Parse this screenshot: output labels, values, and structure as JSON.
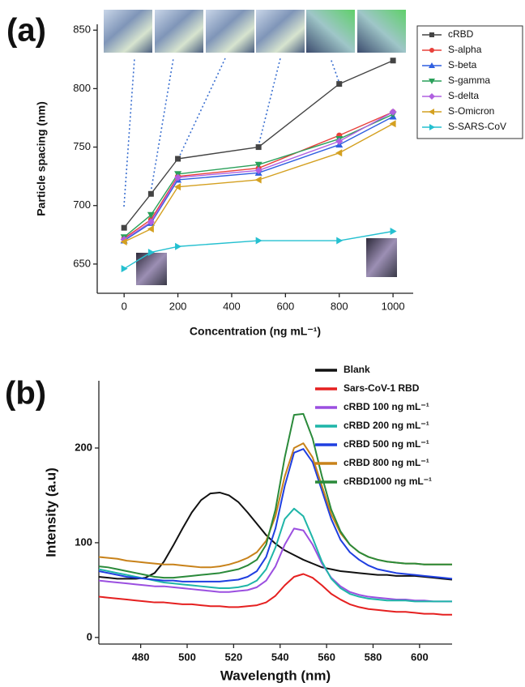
{
  "chart_data": [
    {
      "type": "line",
      "panel_label": "(a)",
      "x_label": "Concentration (ng mL⁻¹)",
      "y_label": "Particle spacing (nm)",
      "x": [
        0,
        100,
        200,
        500,
        800,
        1000
      ],
      "xlim": [
        -100,
        1075
      ],
      "xticks": [
        0,
        200,
        400,
        600,
        800,
        1000
      ],
      "ylim": [
        625,
        855
      ],
      "yticks": [
        650,
        700,
        750,
        800,
        850
      ],
      "legend": "right",
      "legend_box": true,
      "series": [
        {
          "name": "cRBD",
          "color": "#444444",
          "marker": "square",
          "values": [
            681,
            710,
            740,
            750,
            804,
            824
          ]
        },
        {
          "name": "S-alpha",
          "color": "#e8403a",
          "marker": "circle",
          "values": [
            672,
            688,
            725,
            732,
            760,
            780
          ]
        },
        {
          "name": "S-beta",
          "color": "#2f5fe0",
          "marker": "triangle-up",
          "values": [
            670,
            685,
            722,
            728,
            752,
            776
          ]
        },
        {
          "name": "S-gamma",
          "color": "#2aa05a",
          "marker": "triangle-down",
          "values": [
            673,
            692,
            727,
            735,
            757,
            778
          ]
        },
        {
          "name": "S-delta",
          "color": "#b060e0",
          "marker": "diamond",
          "values": [
            671,
            686,
            724,
            730,
            755,
            780
          ]
        },
        {
          "name": "S-Omicron",
          "color": "#d4a020",
          "marker": "triangle-left",
          "values": [
            669,
            680,
            716,
            722,
            745,
            770
          ]
        },
        {
          "name": "S-SARS-CoV",
          "color": "#25c0d0",
          "marker": "triangle-right",
          "values": [
            646,
            660,
            665,
            670,
            670,
            678
          ]
        }
      ]
    },
    {
      "type": "line",
      "panel_label": "(b)",
      "x_label": "Wavelength (nm)",
      "y_label": "Intensity (a.u)",
      "x": [
        462,
        466,
        470,
        474,
        478,
        482,
        486,
        490,
        494,
        498,
        502,
        506,
        510,
        514,
        518,
        522,
        526,
        530,
        534,
        538,
        542,
        546,
        550,
        554,
        558,
        562,
        566,
        570,
        574,
        578,
        582,
        586,
        590,
        594,
        598,
        602,
        606,
        610,
        614
      ],
      "xlim": [
        462,
        614
      ],
      "xticks": [
        480,
        500,
        520,
        540,
        560,
        580,
        600
      ],
      "ylim": [
        -7,
        271
      ],
      "yticks": [
        0,
        100,
        200
      ],
      "legend": "upper right",
      "legend_box": false,
      "series": [
        {
          "name": "Blank",
          "color": "#111111",
          "values": [
            64,
            63,
            62,
            62,
            62,
            63,
            68,
            80,
            97,
            115,
            132,
            145,
            152,
            153,
            150,
            143,
            132,
            120,
            108,
            99,
            92,
            87,
            82,
            78,
            74,
            72,
            70,
            69,
            68,
            67,
            66,
            66,
            65,
            65,
            65,
            64,
            63,
            62,
            61
          ]
        },
        {
          "name": "Sars-CoV-1  RBD",
          "color": "#e52020",
          "values": [
            43,
            42,
            41,
            40,
            39,
            38,
            37,
            37,
            36,
            35,
            35,
            34,
            33,
            33,
            32,
            32,
            33,
            34,
            37,
            44,
            55,
            64,
            67,
            63,
            55,
            46,
            40,
            35,
            32,
            30,
            29,
            28,
            27,
            27,
            26,
            25,
            25,
            24,
            24
          ]
        },
        {
          "name": "cRBD 100 ng mL⁻¹",
          "color": "#9b4fe0",
          "values": [
            60,
            59,
            58,
            57,
            56,
            55,
            54,
            54,
            53,
            52,
            51,
            50,
            49,
            48,
            48,
            49,
            50,
            53,
            60,
            75,
            98,
            115,
            113,
            98,
            78,
            63,
            54,
            48,
            45,
            43,
            42,
            41,
            40,
            40,
            39,
            39,
            38,
            38,
            38
          ]
        },
        {
          "name": "cRBD 200 ng mL⁻¹",
          "color": "#1fb5a8",
          "values": [
            72,
            70,
            68,
            66,
            64,
            62,
            60,
            58,
            57,
            56,
            55,
            54,
            53,
            52,
            52,
            53,
            55,
            60,
            72,
            95,
            125,
            136,
            128,
            105,
            80,
            62,
            52,
            46,
            43,
            41,
            40,
            39,
            39,
            39,
            38,
            38,
            38,
            38,
            38
          ]
        },
        {
          "name": "cRBD 500 ng mL⁻¹",
          "color": "#1f3fe0",
          "values": [
            70,
            68,
            66,
            64,
            63,
            62,
            61,
            60,
            60,
            59,
            59,
            59,
            59,
            59,
            60,
            61,
            64,
            70,
            85,
            115,
            160,
            195,
            199,
            185,
            155,
            125,
            103,
            90,
            82,
            76,
            72,
            70,
            68,
            67,
            66,
            65,
            64,
            63,
            62
          ]
        },
        {
          "name": "cRBD 800 ng mL⁻¹",
          "color": "#c8821a",
          "values": [
            85,
            84,
            83,
            81,
            80,
            79,
            78,
            77,
            77,
            76,
            75,
            74,
            74,
            75,
            77,
            80,
            84,
            90,
            102,
            128,
            170,
            200,
            205,
            190,
            160,
            130,
            110,
            98,
            90,
            85,
            82,
            80,
            79,
            78,
            78,
            77,
            77,
            77,
            77
          ]
        },
        {
          "name": "cRBD1000 ng mL⁻¹",
          "color": "#2a8a3a",
          "values": [
            75,
            74,
            72,
            70,
            68,
            66,
            64,
            63,
            63,
            64,
            65,
            66,
            67,
            68,
            70,
            72,
            76,
            82,
            98,
            135,
            190,
            235,
            236,
            210,
            170,
            135,
            112,
            98,
            90,
            85,
            82,
            80,
            79,
            78,
            78,
            77,
            77,
            77,
            77
          ]
        }
      ]
    }
  ]
}
